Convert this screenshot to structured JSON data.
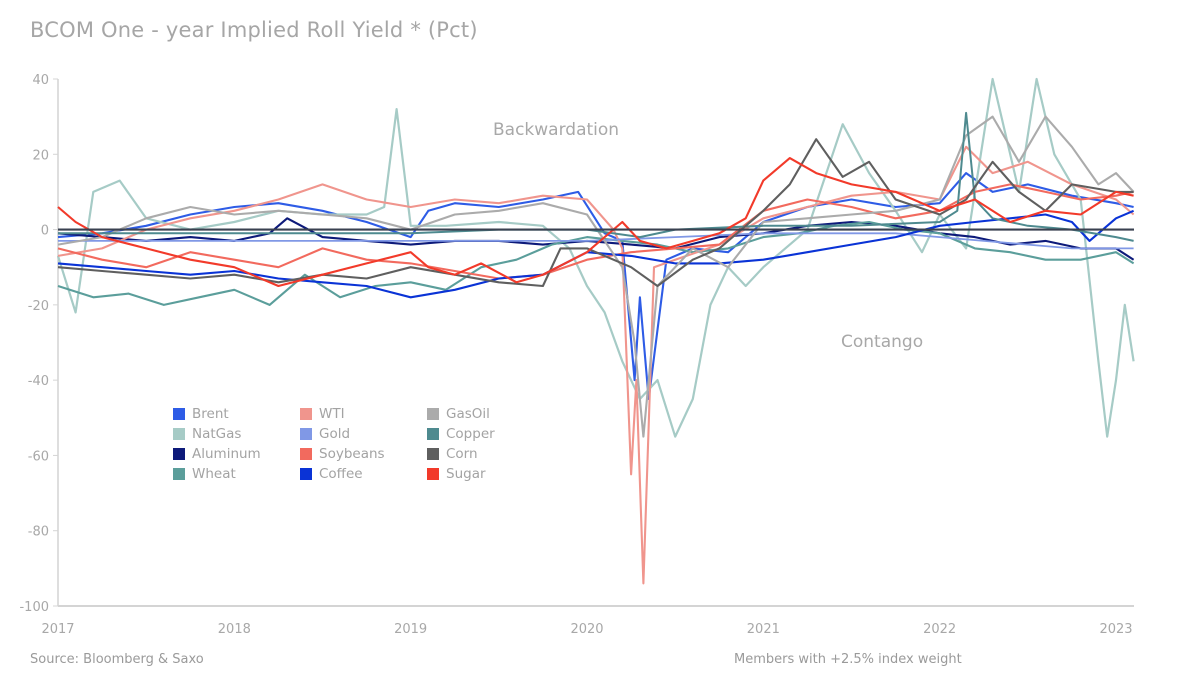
{
  "chart_data": {
    "type": "line",
    "title": "BCOM One - year Implied Roll Yield * (Pct)",
    "xlabel": "",
    "ylabel": "",
    "xlim": [
      2017.0,
      2023.1
    ],
    "ylim": [
      -100,
      40
    ],
    "x_ticks": [
      "2017",
      "2018",
      "2019",
      "2020",
      "2021",
      "2022",
      "2023"
    ],
    "x_tick_values": [
      2017,
      2018,
      2019,
      2020,
      2021,
      2022,
      2023
    ],
    "y_ticks": [
      "40",
      "20",
      "0",
      "-20",
      "-40",
      "-60",
      "-80",
      "-100"
    ],
    "y_tick_values": [
      40,
      20,
      0,
      -20,
      -40,
      -60,
      -80,
      -100
    ],
    "grid": false,
    "legend_position": "lower-left",
    "annotations": [
      "Backwardation",
      "Contango"
    ],
    "zero_line": 0,
    "series": [
      {
        "name": "Brent",
        "color": "#2e5ce6",
        "x": [
          2017.0,
          2017.25,
          2017.5,
          2017.75,
          2018.0,
          2018.25,
          2018.5,
          2018.75,
          2019.0,
          2019.1,
          2019.25,
          2019.5,
          2019.75,
          2019.95,
          2020.1,
          2020.2,
          2020.27,
          2020.3,
          2020.35,
          2020.45,
          2020.6,
          2020.8,
          2021.0,
          2021.25,
          2021.5,
          2021.75,
          2022.0,
          2022.15,
          2022.3,
          2022.5,
          2022.75,
          2023.0,
          2023.1
        ],
        "y": [
          -2,
          -1,
          1,
          4,
          6,
          7,
          5,
          2,
          -2,
          5,
          7,
          6,
          8,
          10,
          -1,
          -3,
          -40,
          -18,
          -45,
          -8,
          -5,
          -6,
          2,
          6,
          8,
          6,
          7,
          15,
          10,
          12,
          9,
          7,
          6
        ]
      },
      {
        "name": "NatGas",
        "color": "#a6cbc6",
        "x": [
          2017.0,
          2017.1,
          2017.2,
          2017.35,
          2017.5,
          2017.75,
          2018.0,
          2018.25,
          2018.5,
          2018.75,
          2018.85,
          2018.92,
          2019.0,
          2019.2,
          2019.5,
          2019.75,
          2019.9,
          2020.0,
          2020.1,
          2020.2,
          2020.3,
          2020.4,
          2020.5,
          2020.6,
          2020.7,
          2020.8,
          2020.9,
          2021.0,
          2021.25,
          2021.45,
          2021.6,
          2021.75,
          2021.9,
          2022.0,
          2022.15,
          2022.3,
          2022.45,
          2022.55,
          2022.65,
          2022.8,
          2022.9,
          2022.95,
          2023.0,
          2023.05,
          2023.1
        ],
        "y": [
          -7,
          -22,
          10,
          13,
          3,
          0,
          2,
          5,
          4,
          4,
          6,
          32,
          1,
          1,
          2,
          1,
          -5,
          -15,
          -22,
          -35,
          -45,
          -40,
          -55,
          -45,
          -20,
          -10,
          -15,
          -10,
          0,
          28,
          15,
          5,
          -6,
          4,
          -5,
          40,
          10,
          40,
          20,
          8,
          -35,
          -55,
          -40,
          -20,
          -35
        ]
      },
      {
        "name": "Aluminum",
        "color": "#0d1a7a",
        "x": [
          2017.0,
          2017.25,
          2017.5,
          2017.75,
          2018.0,
          2018.2,
          2018.3,
          2018.5,
          2018.75,
          2019.0,
          2019.25,
          2019.5,
          2019.75,
          2020.0,
          2020.25,
          2020.5,
          2020.75,
          2021.0,
          2021.25,
          2021.5,
          2021.75,
          2022.0,
          2022.2,
          2022.4,
          2022.6,
          2022.8,
          2023.0,
          2023.1
        ],
        "y": [
          -1,
          -2,
          -3,
          -2,
          -3,
          -1,
          3,
          -2,
          -3,
          -4,
          -3,
          -3,
          -4,
          -3,
          -4,
          -5,
          -2,
          -1,
          1,
          2,
          1,
          -1,
          -2,
          -4,
          -3,
          -5,
          -5,
          -8
        ]
      },
      {
        "name": "Wheat",
        "color": "#5b9e9b",
        "x": [
          2017.0,
          2017.2,
          2017.4,
          2017.6,
          2017.8,
          2018.0,
          2018.2,
          2018.4,
          2018.6,
          2018.8,
          2019.0,
          2019.2,
          2019.4,
          2019.6,
          2019.8,
          2020.0,
          2020.2,
          2020.4,
          2020.6,
          2020.8,
          2021.0,
          2021.2,
          2021.4,
          2021.6,
          2021.8,
          2022.0,
          2022.2,
          2022.4,
          2022.6,
          2022.8,
          2023.0,
          2023.1
        ],
        "y": [
          -15,
          -18,
          -17,
          -20,
          -18,
          -16,
          -20,
          -12,
          -18,
          -15,
          -14,
          -16,
          -10,
          -8,
          -4,
          -2,
          -3,
          -4,
          -6,
          -5,
          -2,
          -1,
          1,
          2,
          0,
          -1,
          -5,
          -6,
          -8,
          -8,
          -6,
          -9
        ]
      },
      {
        "name": "WTI",
        "color": "#f0958d",
        "x": [
          2017.0,
          2017.25,
          2017.5,
          2017.75,
          2018.0,
          2018.25,
          2018.5,
          2018.75,
          2019.0,
          2019.25,
          2019.5,
          2019.75,
          2020.0,
          2020.15,
          2020.2,
          2020.25,
          2020.28,
          2020.32,
          2020.38,
          2020.5,
          2020.75,
          2021.0,
          2021.25,
          2021.5,
          2021.75,
          2022.0,
          2022.15,
          2022.3,
          2022.5,
          2022.75,
          2023.0,
          2023.1
        ],
        "y": [
          -7,
          -5,
          0,
          3,
          5,
          8,
          12,
          8,
          6,
          8,
          7,
          9,
          8,
          0,
          -5,
          -65,
          -40,
          -94,
          -10,
          -8,
          -4,
          3,
          6,
          9,
          10,
          8,
          22,
          15,
          18,
          12,
          8,
          4
        ]
      },
      {
        "name": "Gold",
        "color": "#8098e6",
        "x": [
          2017.0,
          2017.5,
          2018.0,
          2018.5,
          2019.0,
          2019.5,
          2020.0,
          2020.5,
          2021.0,
          2021.25,
          2021.5,
          2021.75,
          2022.0,
          2022.25,
          2022.5,
          2022.75,
          2023.0,
          2023.1
        ],
        "y": [
          -3,
          -3,
          -3,
          -3,
          -3,
          -3,
          -3,
          -2,
          -1,
          -1,
          -1,
          -1,
          -2,
          -3,
          -4,
          -5,
          -5,
          -5
        ]
      },
      {
        "name": "Soybeans",
        "color": "#f26a5e",
        "x": [
          2017.0,
          2017.25,
          2017.5,
          2017.75,
          2018.0,
          2018.25,
          2018.5,
          2018.75,
          2019.0,
          2019.25,
          2019.5,
          2019.75,
          2020.0,
          2020.25,
          2020.5,
          2020.75,
          2021.0,
          2021.25,
          2021.5,
          2021.75,
          2022.0,
          2022.2,
          2022.4,
          2022.6,
          2022.8,
          2023.0,
          2023.1
        ],
        "y": [
          -5,
          -8,
          -10,
          -6,
          -8,
          -10,
          -5,
          -8,
          -9,
          -11,
          -13,
          -12,
          -8,
          -6,
          -5,
          -4,
          5,
          8,
          6,
          3,
          5,
          10,
          12,
          10,
          8,
          9,
          10
        ]
      },
      {
        "name": "Coffee",
        "color": "#0a33d6",
        "x": [
          2017.0,
          2017.25,
          2017.5,
          2017.75,
          2018.0,
          2018.25,
          2018.5,
          2018.75,
          2019.0,
          2019.25,
          2019.5,
          2019.75,
          2020.0,
          2020.25,
          2020.5,
          2020.75,
          2021.0,
          2021.25,
          2021.5,
          2021.75,
          2022.0,
          2022.2,
          2022.4,
          2022.6,
          2022.75,
          2022.85,
          2023.0,
          2023.1
        ],
        "y": [
          -9,
          -10,
          -11,
          -12,
          -11,
          -13,
          -14,
          -15,
          -18,
          -16,
          -13,
          -12,
          -6,
          -7,
          -9,
          -9,
          -8,
          -6,
          -4,
          -2,
          1,
          2,
          3,
          4,
          2,
          -3,
          3,
          5
        ]
      },
      {
        "name": "GasOil",
        "color": "#ababab",
        "x": [
          2017.0,
          2017.25,
          2017.5,
          2017.75,
          2018.0,
          2018.25,
          2018.5,
          2018.75,
          2019.0,
          2019.25,
          2019.5,
          2019.75,
          2020.0,
          2020.2,
          2020.27,
          2020.32,
          2020.4,
          2020.6,
          2020.8,
          2021.0,
          2021.25,
          2021.5,
          2021.75,
          2022.0,
          2022.15,
          2022.3,
          2022.45,
          2022.6,
          2022.75,
          2022.9,
          2023.0,
          2023.1
        ],
        "y": [
          -4,
          -2,
          3,
          6,
          4,
          5,
          4,
          3,
          0,
          4,
          5,
          7,
          4,
          -10,
          -30,
          -55,
          -15,
          -5,
          -10,
          2,
          3,
          4,
          5,
          8,
          25,
          30,
          18,
          30,
          22,
          12,
          15,
          10
        ]
      },
      {
        "name": "Copper",
        "color": "#4e8a8f",
        "x": [
          2017.0,
          2017.5,
          2018.0,
          2018.5,
          2019.0,
          2019.5,
          2020.0,
          2020.3,
          2020.5,
          2021.0,
          2021.5,
          2022.0,
          2022.1,
          2022.15,
          2022.2,
          2022.3,
          2022.5,
          2022.75,
          2023.0,
          2023.1
        ],
        "y": [
          -1,
          -1,
          -1,
          -1,
          -1,
          0,
          0,
          -2,
          0,
          1,
          1,
          2,
          5,
          31,
          8,
          3,
          1,
          0,
          -2,
          -3
        ]
      },
      {
        "name": "Corn",
        "color": "#5f5f5f",
        "x": [
          2017.0,
          2017.25,
          2017.5,
          2017.75,
          2018.0,
          2018.25,
          2018.5,
          2018.75,
          2019.0,
          2019.25,
          2019.5,
          2019.75,
          2019.85,
          2020.0,
          2020.25,
          2020.4,
          2020.6,
          2020.75,
          2021.0,
          2021.15,
          2021.3,
          2021.45,
          2021.6,
          2021.75,
          2022.0,
          2022.15,
          2022.3,
          2022.45,
          2022.6,
          2022.75,
          2023.0,
          2023.1
        ],
        "y": [
          -10,
          -11,
          -12,
          -13,
          -12,
          -14,
          -12,
          -13,
          -10,
          -12,
          -14,
          -15,
          -5,
          -5,
          -10,
          -15,
          -8,
          -5,
          5,
          12,
          24,
          14,
          18,
          8,
          4,
          8,
          18,
          10,
          5,
          12,
          10,
          10
        ]
      },
      {
        "name": "Sugar",
        "color": "#f23a2a",
        "x": [
          2017.0,
          2017.1,
          2017.25,
          2017.5,
          2017.75,
          2018.0,
          2018.25,
          2018.5,
          2018.75,
          2019.0,
          2019.1,
          2019.25,
          2019.4,
          2019.6,
          2019.75,
          2020.0,
          2020.2,
          2020.3,
          2020.45,
          2020.6,
          2020.75,
          2020.9,
          2021.0,
          2021.15,
          2021.3,
          2021.5,
          2021.75,
          2022.0,
          2022.2,
          2022.4,
          2022.6,
          2022.8,
          2023.0,
          2023.1
        ],
        "y": [
          6,
          2,
          -2,
          -5,
          -8,
          -10,
          -15,
          -12,
          -9,
          -6,
          -10,
          -12,
          -9,
          -14,
          -12,
          -6,
          2,
          -3,
          -5,
          -3,
          -1,
          3,
          13,
          19,
          15,
          12,
          10,
          5,
          8,
          2,
          5,
          4,
          10,
          9
        ]
      }
    ]
  },
  "footer": {
    "source": "Source: Bloomberg & Saxo",
    "note": "Members with +2.5% index weight"
  }
}
